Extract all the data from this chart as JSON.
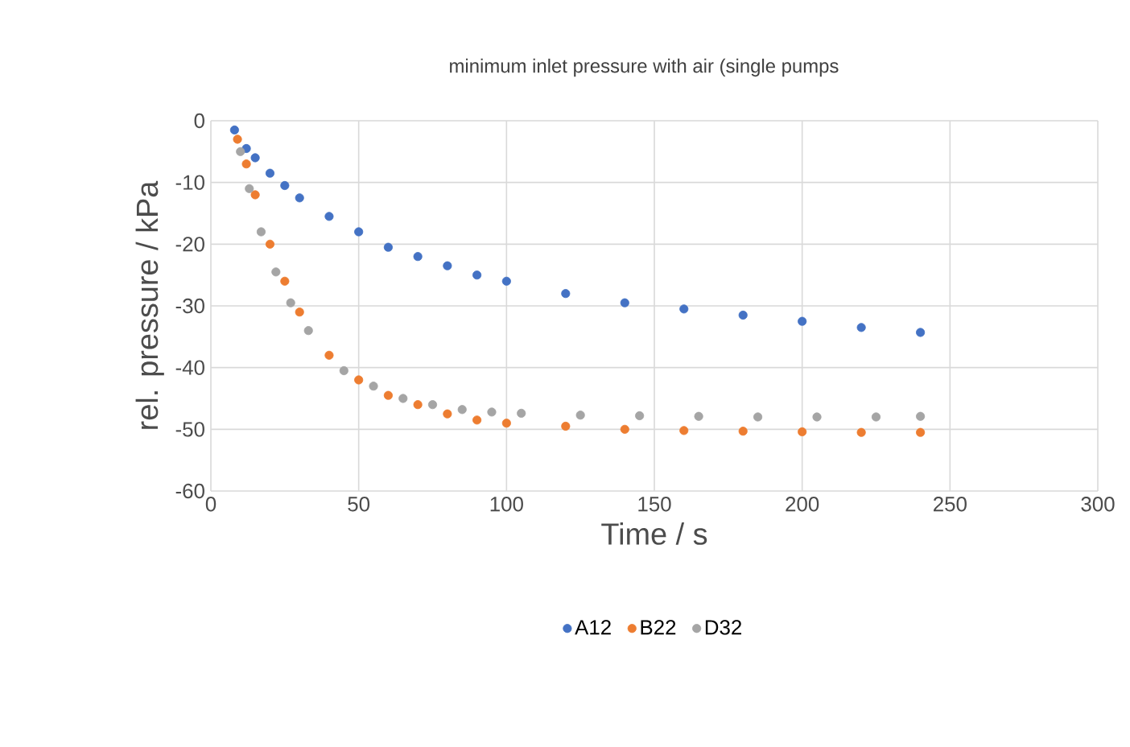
{
  "chart_data": {
    "type": "scatter",
    "title": "minimum inlet pressure with air (single pumps",
    "xlabel": "Time / s",
    "ylabel": "rel. pressure / kPa",
    "xlim": [
      0,
      300
    ],
    "ylim": [
      -60,
      0
    ],
    "xticks": [
      0,
      50,
      100,
      150,
      200,
      250,
      300
    ],
    "yticks": [
      -60,
      -50,
      -40,
      -30,
      -20,
      -10,
      0
    ],
    "grid": true,
    "legend": "bottom",
    "marker": "circle",
    "series": [
      {
        "name": "A12",
        "color": "#4472c4",
        "x": [
          8,
          12,
          15,
          20,
          25,
          30,
          40,
          50,
          60,
          70,
          80,
          90,
          100,
          120,
          140,
          160,
          180,
          200,
          220,
          240
        ],
        "values": [
          -1.5,
          -4.5,
          -6,
          -8.5,
          -10.5,
          -12.5,
          -15.5,
          -18,
          -20.5,
          -22,
          -23.5,
          -25,
          -26,
          -28,
          -29.5,
          -30.5,
          -31.5,
          -32.5,
          -33.5,
          -34.3
        ]
      },
      {
        "name": "B22",
        "color": "#ed7d31",
        "x": [
          9,
          12,
          15,
          20,
          25,
          30,
          40,
          50,
          60,
          70,
          80,
          90,
          100,
          120,
          140,
          160,
          180,
          200,
          220,
          240
        ],
        "values": [
          -3,
          -7,
          -12,
          -20,
          -26,
          -31,
          -38,
          -42,
          -44.5,
          -46,
          -47.5,
          -48.5,
          -49,
          -49.5,
          -50,
          -50.2,
          -50.3,
          -50.4,
          -50.5,
          -50.5
        ]
      },
      {
        "name": "D32",
        "color": "#a5a5a5",
        "x": [
          10,
          13,
          17,
          22,
          27,
          33,
          45,
          55,
          65,
          75,
          85,
          95,
          105,
          125,
          145,
          165,
          185,
          205,
          225,
          240
        ],
        "values": [
          -5,
          -11,
          -18,
          -24.5,
          -29.5,
          -34,
          -40.5,
          -43,
          -45,
          -46,
          -46.8,
          -47.2,
          -47.4,
          -47.7,
          -47.8,
          -47.9,
          -48,
          -48,
          -48,
          -47.9
        ]
      }
    ]
  }
}
